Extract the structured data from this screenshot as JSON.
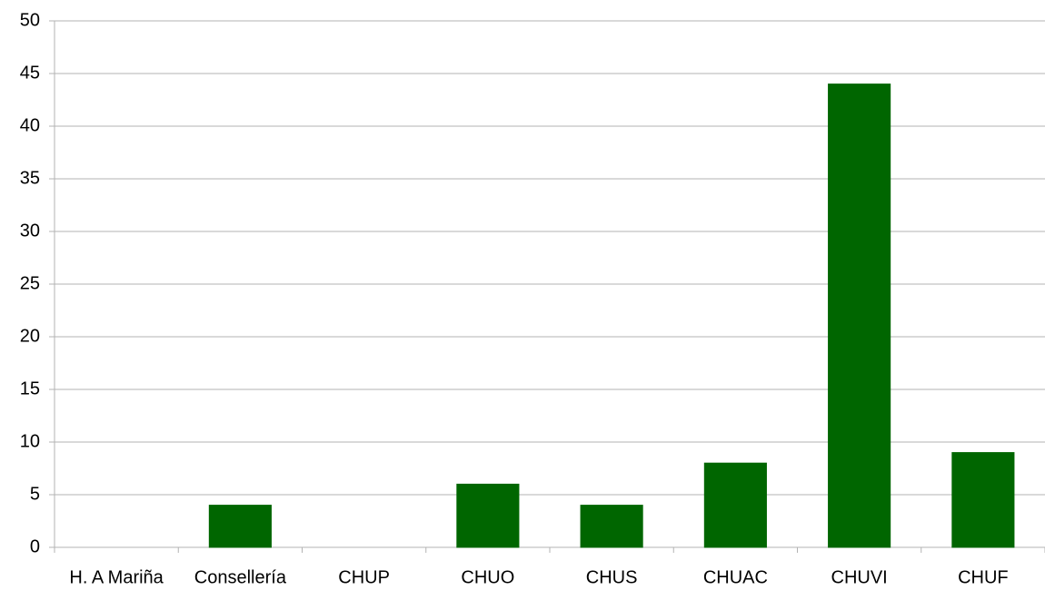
{
  "chart_data": {
    "type": "bar",
    "categories": [
      "H. A Mariña",
      "Consellería",
      "CHUP",
      "CHUO",
      "CHUS",
      "CHUAC",
      "CHUVI",
      "CHUF"
    ],
    "values": [
      0,
      4,
      0,
      6,
      4,
      8,
      44,
      9
    ],
    "color": "#006600",
    "ylim": [
      0,
      50
    ],
    "yticks": [
      0,
      5,
      10,
      15,
      20,
      25,
      30,
      35,
      40,
      45,
      50
    ],
    "grid": true
  }
}
